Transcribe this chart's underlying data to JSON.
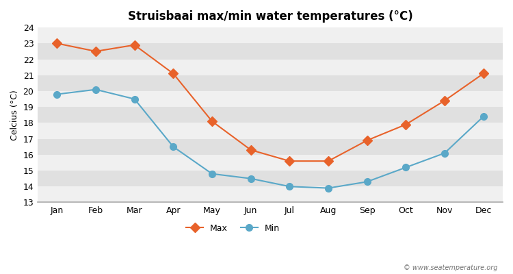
{
  "title": "Struisbaai max/min water temperatures (°C)",
  "ylabel": "Celcius (°C)",
  "months": [
    "Jan",
    "Feb",
    "Mar",
    "Apr",
    "May",
    "Jun",
    "Jul",
    "Aug",
    "Sep",
    "Oct",
    "Nov",
    "Dec"
  ],
  "max_temps": [
    23.0,
    22.5,
    22.9,
    21.1,
    18.1,
    16.3,
    15.6,
    15.6,
    16.9,
    17.9,
    19.4,
    21.1
  ],
  "min_temps": [
    19.8,
    20.1,
    19.5,
    16.5,
    14.8,
    14.5,
    14.0,
    13.9,
    14.3,
    15.2,
    16.1,
    18.4
  ],
  "max_color": "#e8622a",
  "min_color": "#5aa8c8",
  "fig_bg_color": "#ffffff",
  "band_light": "#f0f0f0",
  "band_dark": "#e0e0e0",
  "ylim": [
    13,
    24
  ],
  "yticks": [
    13,
    14,
    15,
    16,
    17,
    18,
    19,
    20,
    21,
    22,
    23,
    24
  ],
  "watermark": "© www.seatemperature.org",
  "marker_size": 7,
  "line_width": 1.5
}
